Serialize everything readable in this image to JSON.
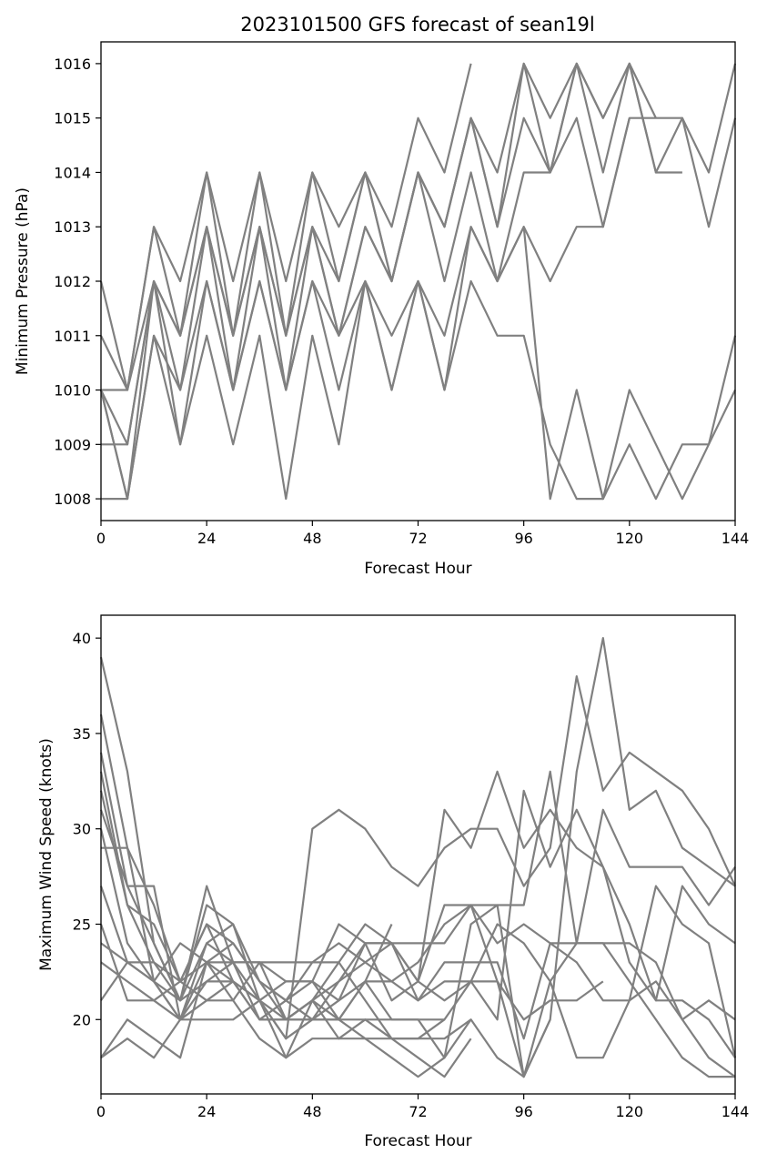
{
  "figure": {
    "title": "2023101500 GFS forecast of sean19l",
    "line_color": "#808080"
  },
  "chart_data": [
    {
      "type": "line",
      "title": "2023101500 GFS forecast of sean19l",
      "xlabel": "Forecast Hour",
      "ylabel": "Minimum Pressure (hPa)",
      "xlim": [
        0,
        144
      ],
      "ylim": [
        1007.6,
        1016.4
      ],
      "xticks": [
        0,
        24,
        48,
        72,
        96,
        120,
        144
      ],
      "yticks": [
        1008,
        1009,
        1010,
        1011,
        1012,
        1013,
        1014,
        1015,
        1016
      ],
      "grid": false,
      "color": "#808080",
      "series": [
        {
          "x": [
            0,
            6,
            12,
            18,
            24,
            30,
            36,
            42,
            48,
            54,
            60,
            66,
            72,
            78,
            84
          ],
          "y": [
            1012,
            1010,
            1013,
            1012,
            1014,
            1012,
            1014,
            1012,
            1014,
            1013,
            1014,
            1013,
            1015,
            1014,
            1016
          ]
        },
        {
          "x": [
            0,
            6,
            12,
            18,
            24,
            30,
            36,
            42,
            48,
            54,
            60,
            66,
            72,
            78,
            84,
            90,
            96,
            102,
            108,
            114,
            120,
            126
          ],
          "y": [
            1011,
            1010,
            1013,
            1011,
            1014,
            1011,
            1014,
            1011,
            1014,
            1012,
            1014,
            1012,
            1014,
            1013,
            1015,
            1014,
            1016,
            1015,
            1016,
            1015,
            1016,
            1015
          ]
        },
        {
          "x": [
            0,
            6,
            12,
            18,
            24,
            30,
            36,
            42,
            48,
            54,
            60,
            66,
            72,
            78,
            84,
            90,
            96,
            102,
            108,
            114,
            120,
            126,
            132
          ],
          "y": [
            1010,
            1010,
            1012,
            1011,
            1013,
            1011,
            1013,
            1011,
            1013,
            1012,
            1014,
            1012,
            1014,
            1013,
            1015,
            1013,
            1016,
            1014,
            1016,
            1014,
            1016,
            1014,
            1014
          ]
        },
        {
          "x": [
            0,
            6,
            12,
            18,
            24,
            30,
            36,
            42,
            48,
            54,
            60,
            66,
            72,
            78,
            84,
            90,
            96,
            102,
            108,
            114,
            120,
            126,
            132,
            138,
            144
          ],
          "y": [
            1010,
            1009,
            1012,
            1011,
            1013,
            1011,
            1013,
            1011,
            1013,
            1011,
            1013,
            1012,
            1014,
            1013,
            1015,
            1013,
            1015,
            1014,
            1016,
            1015,
            1016,
            1014,
            1015,
            1014,
            1016
          ]
        },
        {
          "x": [
            0,
            6,
            12,
            18,
            24,
            30,
            36,
            42,
            48,
            54,
            60,
            66,
            72,
            78,
            84,
            90,
            96,
            102,
            108,
            114,
            120,
            126,
            132,
            138,
            144
          ],
          "y": [
            1009,
            1009,
            1012,
            1010,
            1013,
            1010,
            1013,
            1010,
            1013,
            1011,
            1013,
            1012,
            1014,
            1012,
            1014,
            1012,
            1014,
            1014,
            1015,
            1013,
            1015,
            1015,
            1015,
            1013,
            1015
          ]
        },
        {
          "x": [
            0,
            6,
            12,
            18,
            24,
            30,
            36,
            42,
            48,
            54,
            60,
            66,
            72,
            78,
            84,
            90,
            96,
            102,
            108,
            114,
            120
          ],
          "y": [
            1008,
            1008,
            1011,
            1010,
            1012,
            1010,
            1012,
            1010,
            1012,
            1011,
            1012,
            1011,
            1012,
            1011,
            1013,
            1012,
            1013,
            1012,
            1013,
            1013,
            1015
          ]
        },
        {
          "x": [
            0,
            6,
            12,
            18,
            24,
            30,
            36,
            42,
            48,
            54,
            60,
            66,
            72,
            78,
            84,
            90,
            96,
            102,
            108,
            114,
            120,
            126,
            132,
            138,
            144
          ],
          "y": [
            1010,
            1008,
            1012,
            1009,
            1012,
            1010,
            1012,
            1010,
            1012,
            1010,
            1012,
            1010,
            1012,
            1010,
            1013,
            1012,
            1013,
            1008,
            1010,
            1008,
            1010,
            1009,
            1008,
            1009,
            1011
          ]
        },
        {
          "x": [
            0,
            6,
            12,
            18,
            24,
            30,
            36,
            42,
            48,
            54,
            60,
            66,
            72,
            78,
            84,
            90,
            96,
            102,
            108,
            114,
            120,
            126,
            132,
            138,
            144
          ],
          "y": [
            1010,
            1008,
            1011,
            1009,
            1011,
            1009,
            1011,
            1008,
            1011,
            1009,
            1012,
            1010,
            1012,
            1010,
            1012,
            1011,
            1011,
            1009,
            1008,
            1008,
            1009,
            1008,
            1009,
            1009,
            1010
          ]
        }
      ]
    },
    {
      "type": "line",
      "xlabel": "Forecast Hour",
      "ylabel": "Maximum Wind Speed (knots)",
      "xlim": [
        0,
        144
      ],
      "ylim": [
        16.1,
        41.2
      ],
      "xticks": [
        0,
        24,
        48,
        72,
        96,
        120,
        144
      ],
      "yticks": [
        20,
        25,
        30,
        35,
        40
      ],
      "grid": false,
      "color": "#808080",
      "series": [
        {
          "x": [
            0,
            6,
            12,
            18,
            24,
            30,
            36,
            42,
            48,
            54,
            60,
            66,
            72,
            78,
            84,
            90,
            96,
            102,
            108,
            114,
            120,
            126,
            132,
            138,
            144
          ],
          "y": [
            39,
            33,
            24,
            21,
            24,
            23,
            21,
            19,
            30,
            31,
            30,
            28,
            27,
            29,
            30,
            30,
            27,
            29,
            38,
            32,
            34,
            33,
            32,
            30,
            27
          ]
        },
        {
          "x": [
            0,
            6,
            12,
            18,
            24,
            30,
            36,
            42,
            48,
            54,
            60,
            66,
            72,
            78,
            84,
            90,
            96,
            102,
            108,
            114,
            120,
            126,
            132,
            138,
            144
          ],
          "y": [
            36,
            29,
            26,
            22,
            25,
            22,
            20,
            21,
            22,
            20,
            22,
            22,
            23,
            25,
            26,
            24,
            25,
            24,
            24,
            24,
            22,
            20,
            18,
            17,
            17
          ]
        },
        {
          "x": [
            0,
            6,
            12,
            18,
            24,
            30,
            36,
            42,
            48,
            54,
            60,
            66,
            72,
            78,
            84,
            90,
            96,
            102,
            108,
            114,
            120,
            126,
            132,
            138,
            144
          ],
          "y": [
            34,
            27,
            27,
            20,
            24,
            25,
            22,
            20,
            21,
            22,
            24,
            21,
            22,
            31,
            29,
            33,
            29,
            31,
            29,
            28,
            25,
            21,
            21,
            20,
            18
          ]
        },
        {
          "x": [
            0,
            6,
            12,
            18,
            24,
            30,
            36,
            42,
            48,
            54,
            60,
            66,
            72,
            78,
            84,
            90,
            96,
            102,
            108,
            114,
            120,
            126,
            132,
            138,
            144
          ],
          "y": [
            33,
            26,
            25,
            22,
            25,
            24,
            22,
            21,
            23,
            24,
            23,
            24,
            24,
            24,
            26,
            22,
            17,
            20,
            33,
            40,
            31,
            32,
            29,
            28,
            27
          ]
        },
        {
          "x": [
            0,
            6,
            12,
            18,
            24,
            30,
            36,
            42,
            48,
            54,
            60,
            66,
            72,
            78,
            84,
            90,
            96,
            102,
            108,
            114,
            120,
            126,
            132,
            138,
            144
          ],
          "y": [
            32,
            26,
            23,
            21,
            22,
            23,
            23,
            23,
            23,
            23,
            25,
            24,
            22,
            26,
            26,
            26,
            26,
            33,
            24,
            24,
            24,
            23,
            20,
            21,
            20
          ]
        },
        {
          "x": [
            0,
            6,
            12,
            18,
            24,
            30,
            36,
            42,
            48,
            54,
            60,
            66,
            72,
            78,
            84,
            90,
            96,
            102,
            108,
            114,
            120,
            126,
            132,
            138,
            144
          ],
          "y": [
            31,
            27,
            24,
            21,
            26,
            25,
            21,
            22,
            22,
            21,
            24,
            24,
            22,
            21,
            22,
            20,
            32,
            28,
            31,
            28,
            23,
            21,
            27,
            25,
            24
          ]
        },
        {
          "x": [
            0,
            6,
            12,
            18,
            24,
            30,
            36,
            42,
            48,
            54,
            60,
            66,
            72,
            78,
            84,
            90,
            96,
            102,
            108,
            114,
            120,
            126,
            132,
            138,
            144
          ],
          "y": [
            30,
            24,
            22,
            21,
            27,
            23,
            23,
            22,
            22,
            25,
            24,
            24,
            21,
            23,
            23,
            23,
            19,
            24,
            23,
            21,
            21,
            22,
            20,
            18,
            17
          ]
        },
        {
          "x": [
            0,
            6,
            12,
            18,
            24,
            30,
            36,
            42,
            48,
            54,
            60,
            66,
            72,
            78,
            84,
            90,
            96,
            102,
            108,
            114,
            120,
            126,
            132,
            138,
            144
          ],
          "y": [
            29,
            29,
            22,
            20,
            23,
            21,
            23,
            20,
            20,
            20,
            22,
            20,
            20,
            18,
            20,
            18,
            17,
            22,
            24,
            31,
            28,
            28,
            28,
            26,
            28
          ]
        },
        {
          "x": [
            0,
            6,
            12,
            18,
            24,
            30,
            36,
            42,
            48,
            54,
            60,
            66,
            72,
            78,
            84,
            90,
            96,
            102,
            108,
            114,
            120,
            126,
            132,
            138,
            144
          ],
          "y": [
            27,
            23,
            22,
            20,
            21,
            21,
            19,
            18,
            21,
            23,
            21,
            19,
            19,
            20,
            22,
            25,
            24,
            22,
            18,
            18,
            21,
            27,
            25,
            24,
            18
          ]
        },
        {
          "x": [
            0,
            6,
            12,
            18,
            24,
            30,
            36,
            42,
            48,
            54,
            60,
            66
          ],
          "y": [
            25,
            21,
            21,
            22,
            21,
            22,
            21,
            19,
            20,
            21,
            22,
            25
          ]
        },
        {
          "x": [
            0,
            6,
            12,
            18,
            24,
            30,
            36,
            42,
            48,
            54,
            60,
            66,
            72,
            78,
            84
          ],
          "y": [
            24,
            23,
            23,
            22,
            23,
            22,
            20,
            20,
            20,
            20,
            19,
            19,
            18,
            17,
            19
          ]
        },
        {
          "x": [
            0,
            6,
            12,
            18,
            24,
            30,
            36,
            42,
            48,
            54,
            60,
            66,
            72,
            78,
            84
          ],
          "y": [
            23,
            22,
            21,
            20,
            22,
            22,
            21,
            20,
            21,
            19,
            20,
            19,
            19,
            19,
            20
          ]
        },
        {
          "x": [
            0,
            6,
            12,
            18,
            24,
            30,
            36,
            42,
            48,
            54,
            60,
            66,
            72,
            78
          ],
          "y": [
            21,
            23,
            22,
            24,
            23,
            23,
            20,
            20,
            21,
            20,
            20,
            20,
            20,
            20
          ]
        },
        {
          "x": [
            0,
            6,
            12,
            18,
            24,
            30,
            36,
            42,
            48,
            54,
            60,
            66,
            72,
            78,
            84,
            90,
            96,
            102,
            108,
            114
          ],
          "y": [
            18,
            20,
            19,
            18,
            23,
            24,
            22,
            21,
            20,
            22,
            23,
            22,
            21,
            22,
            22,
            22,
            20,
            21,
            21,
            22
          ]
        },
        {
          "x": [
            0,
            6,
            12,
            18,
            24,
            30,
            36,
            42,
            48,
            54,
            60,
            66,
            72,
            78,
            84,
            90,
            96,
            102
          ],
          "y": [
            18,
            19,
            18,
            20,
            20,
            20,
            21,
            18,
            19,
            19,
            19,
            18,
            17,
            18,
            25,
            26,
            17,
            20
          ]
        }
      ]
    }
  ]
}
